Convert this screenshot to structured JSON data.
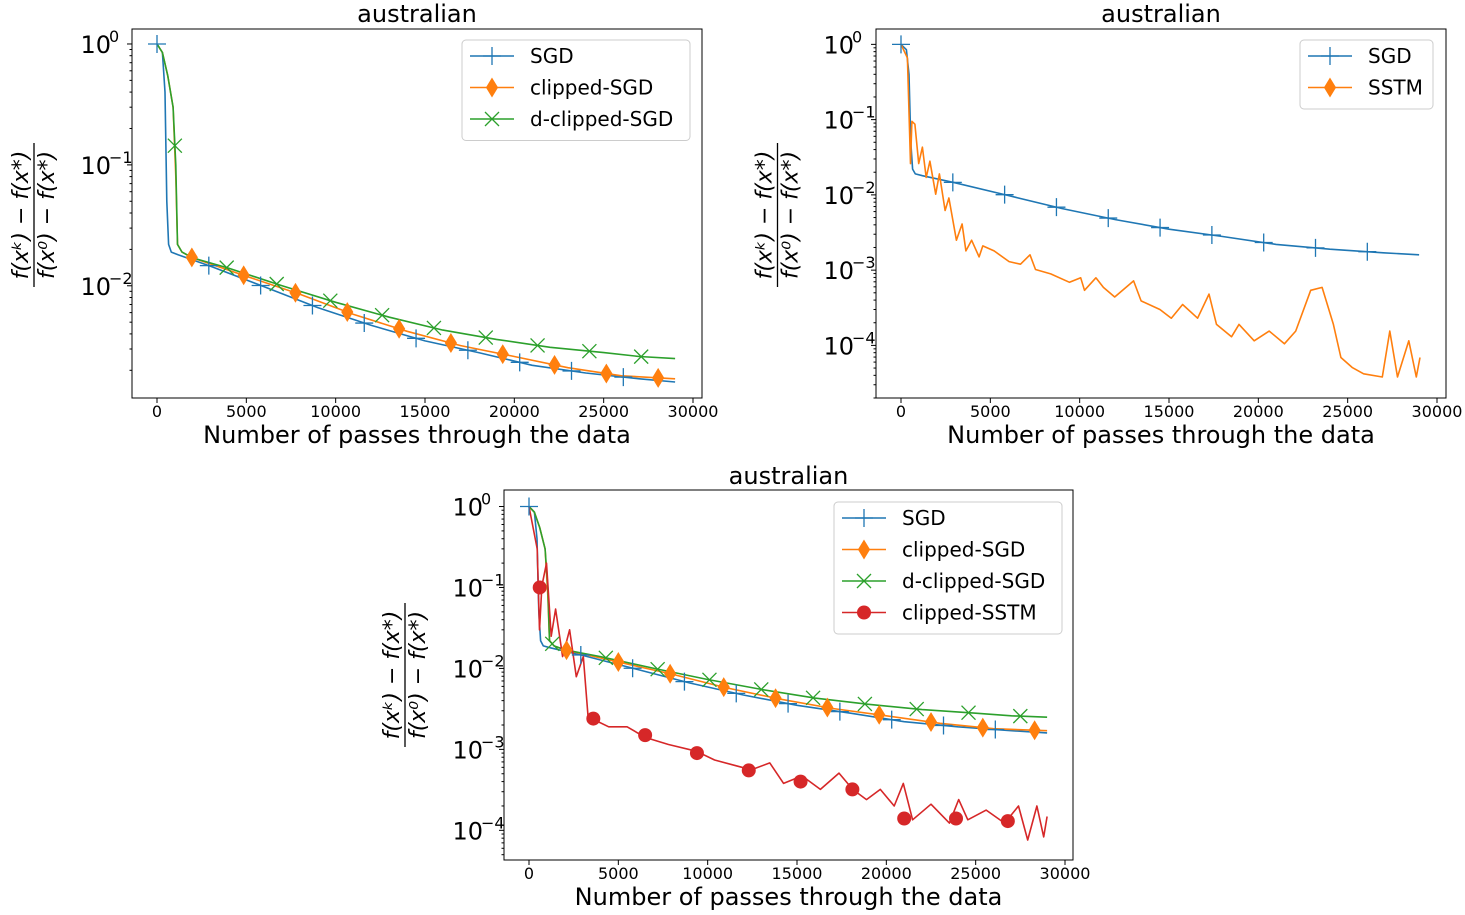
{
  "chart_data": [
    {
      "type": "line",
      "title": "australian",
      "xlabel": "Number of passes through the data",
      "ylabel": {
        "numerator": "f(xᵏ) − f(x*)",
        "denominator": "f(x⁰) − f(x*)"
      },
      "yscale": "log",
      "xlim": [
        -1400,
        30400
      ],
      "ylim": [
        0.00118,
        1.33
      ],
      "xticks": [
        0,
        5000,
        10000,
        15000,
        20000,
        25000,
        30000
      ],
      "xtick_labels": [
        "0",
        "5000",
        "10000",
        "15000",
        "20000",
        "25000",
        "30000"
      ],
      "yticks": [
        {
          "value": 1,
          "base": "10",
          "exp": "0"
        },
        {
          "value": 0.1,
          "base": "10",
          "exp": "−1"
        },
        {
          "value": 0.01,
          "base": "10",
          "exp": "−2"
        }
      ],
      "grid": false,
      "legend": "top-right",
      "series": [
        {
          "name": "SGD",
          "color": "#1f77b4",
          "marker": "plus",
          "x": [
            0,
            300,
            450,
            550,
            650,
            800,
            1200,
            3000,
            6000,
            9000,
            12000,
            15000,
            18000,
            21000,
            24000,
            27000,
            29000
          ],
          "y": [
            1,
            0.85,
            0.4,
            0.05,
            0.022,
            0.019,
            0.018,
            0.0145,
            0.0098,
            0.0066,
            0.0047,
            0.0035,
            0.0028,
            0.0022,
            0.0019,
            0.0017,
            0.0016
          ],
          "markers_x": [
            0,
            2900,
            5800,
            8700,
            11600,
            14500,
            17400,
            20300,
            23200,
            26100
          ]
        },
        {
          "name": "clipped-SGD",
          "color": "#ff7f0e",
          "marker": "thin-diamond",
          "x": [
            0,
            300,
            600,
            900,
            1050,
            1150,
            1400,
            2000,
            5000,
            8000,
            11000,
            14000,
            17000,
            20000,
            23000,
            26000,
            29000
          ],
          "y": [
            1,
            0.85,
            0.55,
            0.3,
            0.08,
            0.022,
            0.019,
            0.017,
            0.012,
            0.0085,
            0.0058,
            0.0042,
            0.0032,
            0.0026,
            0.0021,
            0.0018,
            0.0017
          ],
          "markers_x": [
            1950,
            4850,
            7750,
            10650,
            13550,
            16450,
            19350,
            22250,
            25150,
            28050
          ]
        },
        {
          "name": "d-clipped-SGD",
          "color": "#2ca02c",
          "marker": "x",
          "x": [
            0,
            300,
            600,
            900,
            1050,
            1150,
            1400,
            2000,
            4000,
            7000,
            10000,
            13000,
            16000,
            19000,
            22000,
            25000,
            27000,
            29000
          ],
          "y": [
            1,
            0.85,
            0.55,
            0.3,
            0.1,
            0.022,
            0.019,
            0.017,
            0.014,
            0.01,
            0.0073,
            0.0055,
            0.0043,
            0.0036,
            0.0031,
            0.0028,
            0.0026,
            0.0025
          ],
          "markers_x": [
            1000,
            3900,
            6700,
            9700,
            12600,
            15500,
            18400,
            21300,
            24200,
            27100
          ]
        }
      ]
    },
    {
      "type": "line",
      "title": "australian",
      "xlabel": "Number of passes through the data",
      "ylabel": {
        "numerator": "f(xᵏ) − f(x*)",
        "denominator": "f(x⁰) − f(x*)"
      },
      "yscale": "log",
      "xlim": [
        -1400,
        30400
      ],
      "ylim": [
        2e-05,
        1.6
      ],
      "xticks": [
        0,
        5000,
        10000,
        15000,
        20000,
        25000,
        30000
      ],
      "xtick_labels": [
        "0",
        "5000",
        "10000",
        "15000",
        "20000",
        "25000",
        "30000"
      ],
      "yticks": [
        {
          "value": 1,
          "base": "10",
          "exp": "0"
        },
        {
          "value": 0.1,
          "base": "10",
          "exp": "−1"
        },
        {
          "value": 0.01,
          "base": "10",
          "exp": "−2"
        },
        {
          "value": 0.001,
          "base": "10",
          "exp": "−3"
        },
        {
          "value": 0.0001,
          "base": "10",
          "exp": "−4"
        }
      ],
      "grid": false,
      "legend": "top-right",
      "series": [
        {
          "name": "SGD",
          "color": "#1f77b4",
          "marker": "plus",
          "x": [
            0,
            300,
            450,
            550,
            650,
            800,
            1200,
            3000,
            6000,
            9000,
            12000,
            15000,
            18000,
            21000,
            24000,
            27000,
            29000
          ],
          "y": [
            1,
            0.85,
            0.4,
            0.05,
            0.022,
            0.019,
            0.018,
            0.0145,
            0.0098,
            0.0066,
            0.0047,
            0.0035,
            0.0028,
            0.0022,
            0.0019,
            0.0017,
            0.0016
          ],
          "markers_x": [
            0,
            2900,
            5800,
            8700,
            11600,
            14500,
            17400,
            20300,
            23200,
            26100
          ]
        },
        {
          "name": "SSTM",
          "color": "#ff7f0e",
          "marker": "thin-diamond",
          "x": [
            0,
            360,
            530,
            610,
            780,
            990,
            1200,
            1410,
            1620,
            1940,
            2150,
            2470,
            2680,
            3100,
            3420,
            3630,
            3950,
            4370,
            4580,
            5210,
            6050,
            6690,
            7220,
            7530,
            8380,
            9430,
            10060,
            10270,
            10910,
            11330,
            11960,
            13020,
            13440,
            14490,
            15130,
            15760,
            16600,
            17240,
            17660,
            18500,
            18920,
            19770,
            20610,
            21460,
            22090,
            22930,
            23570,
            24200,
            24620,
            25250,
            25890,
            26940,
            27360,
            27790,
            28420,
            28840,
            29050
          ],
          "y": [
            1,
            0.66,
            0.026,
            0.095,
            0.087,
            0.026,
            0.043,
            0.017,
            0.028,
            0.0102,
            0.019,
            0.0062,
            0.0091,
            0.0025,
            0.0041,
            0.0018,
            0.0025,
            0.0015,
            0.0021,
            0.0018,
            0.0013,
            0.0012,
            0.0016,
            0.00102,
            0.00089,
            0.00069,
            0.00079,
            0.00054,
            0.00079,
            0.00059,
            0.00044,
            0.00072,
            0.00039,
            0.0003,
            0.00023,
            0.00035,
            0.00023,
            0.00048,
            0.00019,
            0.00013,
            0.00019,
            0.000115,
            0.000155,
            0.000105,
            0.000155,
            0.00054,
            0.00059,
            0.00019,
            6.9e-05,
            5.1e-05,
            4.2e-05,
            3.8e-05,
            0.000155,
            3.8e-05,
            0.000115,
            3.8e-05,
            6.9e-05
          ],
          "markers_x": []
        }
      ]
    },
    {
      "type": "line",
      "title": "australian",
      "xlabel": "Number of passes through the data",
      "ylabel": {
        "numerator": "f(xᵏ) − f(x*)",
        "denominator": "f(x⁰) − f(x*)"
      },
      "yscale": "log",
      "xlim": [
        -1400,
        30400
      ],
      "ylim": [
        4.3e-05,
        1.6
      ],
      "xticks": [
        0,
        5000,
        10000,
        15000,
        20000,
        25000,
        30000
      ],
      "xtick_labels": [
        "0",
        "5000",
        "10000",
        "15000",
        "20000",
        "25000",
        "30000"
      ],
      "yticks": [
        {
          "value": 1,
          "base": "10",
          "exp": "0"
        },
        {
          "value": 0.1,
          "base": "10",
          "exp": "−1"
        },
        {
          "value": 0.01,
          "base": "10",
          "exp": "−2"
        },
        {
          "value": 0.001,
          "base": "10",
          "exp": "−3"
        },
        {
          "value": 0.0001,
          "base": "10",
          "exp": "−4"
        }
      ],
      "grid": false,
      "legend": "top-right",
      "series": [
        {
          "name": "SGD",
          "color": "#1f77b4",
          "marker": "plus",
          "x": [
            0,
            300,
            450,
            550,
            650,
            800,
            1200,
            3000,
            6000,
            9000,
            12000,
            15000,
            18000,
            21000,
            24000,
            27000,
            29000
          ],
          "y": [
            1,
            0.85,
            0.4,
            0.05,
            0.022,
            0.019,
            0.018,
            0.0145,
            0.0098,
            0.0066,
            0.0047,
            0.0035,
            0.0028,
            0.0022,
            0.0019,
            0.0017,
            0.0016
          ],
          "markers_x": [
            0,
            2900,
            5800,
            8700,
            11600,
            14500,
            17400,
            20300,
            23200,
            26100
          ]
        },
        {
          "name": "clipped-SGD",
          "color": "#ff7f0e",
          "marker": "thin-diamond",
          "x": [
            0,
            300,
            600,
            900,
            1050,
            1150,
            1400,
            2000,
            5000,
            8000,
            11000,
            14000,
            17000,
            20000,
            23000,
            26000,
            29000
          ],
          "y": [
            1,
            0.85,
            0.55,
            0.3,
            0.08,
            0.022,
            0.019,
            0.017,
            0.012,
            0.0085,
            0.0058,
            0.0042,
            0.0032,
            0.0026,
            0.0021,
            0.0018,
            0.0017
          ],
          "markers_x": [
            2100,
            5000,
            7900,
            10900,
            13800,
            16700,
            19600,
            22500,
            25400,
            28300
          ]
        },
        {
          "name": "d-clipped-SGD",
          "color": "#2ca02c",
          "marker": "x",
          "x": [
            0,
            300,
            600,
            900,
            1050,
            1150,
            1400,
            2000,
            4000,
            7000,
            10000,
            13000,
            16000,
            19000,
            22000,
            25000,
            27000,
            29000
          ],
          "y": [
            1,
            0.85,
            0.55,
            0.3,
            0.1,
            0.022,
            0.019,
            0.017,
            0.014,
            0.01,
            0.0073,
            0.0055,
            0.0043,
            0.0036,
            0.0031,
            0.0028,
            0.0026,
            0.0025
          ],
          "markers_x": [
            1300,
            4300,
            7200,
            10100,
            13000,
            15900,
            18800,
            21700,
            24600,
            27500
          ]
        },
        {
          "name": "clipped-SSTM",
          "color": "#d62728",
          "marker": "circle",
          "x": [
            0,
            460,
            590,
            720,
            980,
            1240,
            1490,
            1880,
            2270,
            2650,
            3040,
            3300,
            3690,
            4460,
            5490,
            6520,
            7810,
            9360,
            10390,
            11680,
            12450,
            13480,
            14250,
            15280,
            16310,
            17350,
            18120,
            18890,
            19660,
            20440,
            20950,
            21470,
            22500,
            23530,
            24050,
            24560,
            25590,
            26620,
            27400,
            27910,
            28430,
            28810,
            29000
          ],
          "y": [
            1,
            0.3,
            0.03,
            0.105,
            0.2,
            0.025,
            0.054,
            0.014,
            0.03,
            0.0079,
            0.014,
            0.0026,
            0.0023,
            0.0019,
            0.0019,
            0.0014,
            0.00115,
            0.00095,
            0.00074,
            0.00062,
            0.00056,
            0.00068,
            0.00038,
            0.00047,
            0.00032,
            0.00051,
            0.00032,
            0.00024,
            0.00032,
            0.0002,
            0.00038,
            0.000135,
            0.00021,
            0.000123,
            0.00024,
            0.000135,
            0.000178,
            0.000123,
            0.0002,
            7.6e-05,
            0.0002,
            8.3e-05,
            0.000148
          ],
          "markers": [
            [
              600,
              0.1
            ],
            [
              3600,
              0.0024
            ],
            [
              6500,
              0.0015
            ],
            [
              9400,
              0.0009
            ],
            [
              12300,
              0.00055
            ],
            [
              15200,
              0.0004
            ],
            [
              18100,
              0.00032
            ],
            [
              21000,
              0.00014
            ],
            [
              23900,
              0.00014
            ],
            [
              26800,
              0.00013
            ]
          ]
        }
      ]
    }
  ]
}
